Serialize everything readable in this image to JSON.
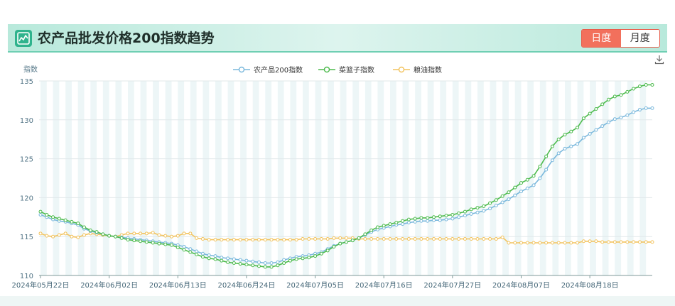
{
  "header": {
    "title": "农产品批发价格200指数趋势",
    "logo_icon": "line-chart-icon",
    "toggle": {
      "day_label": "日度",
      "month_label": "月度",
      "active": "day"
    },
    "download_icon": "download-icon"
  },
  "colors": {
    "agri200": "#7ab8dc",
    "basket": "#4dbb4d",
    "oil": "#f2c35e",
    "accent": "#f2705c",
    "band": "#edf6f7"
  },
  "chart_data": {
    "type": "line",
    "ylabel": "指数",
    "ylim": [
      110,
      135
    ],
    "yticks": [
      110,
      115,
      120,
      125,
      130,
      135
    ],
    "x_tick_labels": [
      "2024年05月22日",
      "2024年06月02日",
      "2024年06月13日",
      "2024年06月24日",
      "2024年07月05日",
      "2024年07月16日",
      "2024年07月27日",
      "2024年08月07日",
      "2024年08月18日"
    ],
    "x_start": "2024-05-22",
    "x_end": "2024-08-22",
    "legend_position": "top-center",
    "series": [
      {
        "name": "农产品200指数",
        "values": [
          117.8,
          117.5,
          117.2,
          117.0,
          116.9,
          116.7,
          116.5,
          116.0,
          115.7,
          115.5,
          115.3,
          115.1,
          115.0,
          114.9,
          114.8,
          114.7,
          114.6,
          114.5,
          114.4,
          114.3,
          114.2,
          114.1,
          113.9,
          113.7,
          113.4,
          113.1,
          112.8,
          112.6,
          112.5,
          112.3,
          112.2,
          112.1,
          112.0,
          111.9,
          111.8,
          111.7,
          111.6,
          111.6,
          111.7,
          112.0,
          112.2,
          112.4,
          112.5,
          112.6,
          112.8,
          113.0,
          113.4,
          113.8,
          114.1,
          114.3,
          114.5,
          114.8,
          115.2,
          115.6,
          115.9,
          116.1,
          116.3,
          116.5,
          116.6,
          116.8,
          116.9,
          117.0,
          117.0,
          117.1,
          117.1,
          117.2,
          117.3,
          117.5,
          117.7,
          117.9,
          118.1,
          118.3,
          118.6,
          119.0,
          119.4,
          119.8,
          120.3,
          120.8,
          121.2,
          121.6,
          122.5,
          123.6,
          124.8,
          125.7,
          126.3,
          126.6,
          126.9,
          127.7,
          128.2,
          128.7,
          129.2,
          129.7,
          130.1,
          130.3,
          130.6,
          131.0,
          131.3,
          131.5,
          131.5
        ]
      },
      {
        "name": "菜篮子指数",
        "values": [
          118.2,
          117.8,
          117.5,
          117.3,
          117.1,
          116.9,
          116.7,
          116.2,
          115.8,
          115.6,
          115.3,
          115.1,
          115.0,
          114.8,
          114.6,
          114.5,
          114.4,
          114.3,
          114.2,
          114.1,
          114.0,
          113.9,
          113.6,
          113.3,
          113.0,
          112.7,
          112.4,
          112.2,
          112.1,
          111.9,
          111.7,
          111.6,
          111.5,
          111.4,
          111.3,
          111.2,
          111.1,
          111.1,
          111.3,
          111.6,
          111.9,
          112.1,
          112.2,
          112.3,
          112.5,
          112.8,
          113.2,
          113.7,
          114.1,
          114.3,
          114.5,
          114.8,
          115.3,
          115.8,
          116.2,
          116.4,
          116.6,
          116.8,
          117.0,
          117.2,
          117.3,
          117.4,
          117.4,
          117.5,
          117.6,
          117.7,
          117.8,
          118.0,
          118.2,
          118.5,
          118.7,
          118.9,
          119.3,
          119.7,
          120.2,
          120.7,
          121.3,
          121.9,
          122.3,
          122.8,
          124.0,
          125.3,
          126.6,
          127.5,
          128.1,
          128.5,
          129.0,
          130.2,
          130.8,
          131.4,
          132.0,
          132.6,
          133.0,
          133.2,
          133.6,
          134.0,
          134.3,
          134.5,
          134.5
        ]
      },
      {
        "name": "粮油指数",
        "values": [
          115.4,
          115.1,
          115.0,
          115.2,
          115.4,
          115.0,
          114.9,
          115.2,
          115.4,
          115.3,
          115.2,
          115.1,
          115.0,
          115.2,
          115.4,
          115.4,
          115.4,
          115.4,
          115.5,
          115.2,
          115.1,
          115.0,
          115.1,
          115.4,
          115.4,
          114.8,
          114.7,
          114.6,
          114.6,
          114.6,
          114.6,
          114.6,
          114.6,
          114.6,
          114.6,
          114.6,
          114.6,
          114.6,
          114.6,
          114.6,
          114.6,
          114.6,
          114.7,
          114.7,
          114.7,
          114.7,
          114.7,
          114.8,
          114.8,
          114.8,
          114.8,
          114.7,
          114.7,
          114.7,
          114.7,
          114.7,
          114.7,
          114.7,
          114.7,
          114.7,
          114.7,
          114.7,
          114.7,
          114.7,
          114.7,
          114.7,
          114.7,
          114.7,
          114.7,
          114.7,
          114.7,
          114.7,
          114.7,
          114.7,
          114.9,
          114.2,
          114.2,
          114.2,
          114.2,
          114.2,
          114.2,
          114.2,
          114.2,
          114.2,
          114.2,
          114.2,
          114.2,
          114.4,
          114.4,
          114.4,
          114.3,
          114.3,
          114.3,
          114.3,
          114.3,
          114.3,
          114.3,
          114.3,
          114.3
        ]
      }
    ]
  }
}
